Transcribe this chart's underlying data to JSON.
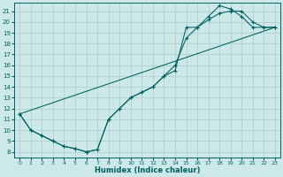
{
  "bg_color": "#cce8e8",
  "grid_color": "#b0d0d0",
  "line_color": "#006060",
  "xlabel": "Humidex (Indice chaleur)",
  "xlim": [
    -0.5,
    23.5
  ],
  "ylim": [
    7.5,
    21.8
  ],
  "xticks": [
    0,
    1,
    2,
    3,
    4,
    5,
    6,
    7,
    8,
    9,
    10,
    11,
    12,
    13,
    14,
    15,
    16,
    17,
    18,
    19,
    20,
    21,
    22,
    23
  ],
  "yticks": [
    8,
    9,
    10,
    11,
    12,
    13,
    14,
    15,
    16,
    17,
    18,
    19,
    20,
    21
  ],
  "line1_x": [
    0,
    1,
    2,
    3,
    4,
    5,
    6,
    7,
    8,
    9,
    10,
    11,
    12,
    13,
    14,
    15,
    16,
    17,
    18,
    19,
    20,
    21,
    22,
    23
  ],
  "line1_y": [
    11.5,
    10.0,
    9.5,
    9.0,
    8.5,
    8.3,
    8.0,
    8.2,
    11.0,
    12.0,
    13.0,
    13.5,
    14.0,
    15.0,
    15.5,
    19.5,
    19.5,
    20.5,
    21.5,
    21.2,
    20.5,
    19.5,
    19.5,
    19.5
  ],
  "line2_x": [
    0,
    1,
    2,
    3,
    4,
    5,
    6,
    7,
    8,
    9,
    10,
    11,
    12,
    13,
    14,
    15,
    16,
    17,
    18,
    19,
    20,
    21,
    22,
    23
  ],
  "line2_y": [
    11.5,
    10.0,
    9.5,
    9.0,
    8.5,
    8.3,
    8.0,
    8.2,
    11.0,
    12.0,
    13.0,
    13.5,
    14.0,
    15.0,
    16.0,
    18.5,
    19.5,
    20.2,
    20.8,
    21.0,
    21.0,
    20.0,
    19.5,
    19.5
  ],
  "line3_x": [
    0,
    23
  ],
  "line3_y": [
    11.5,
    19.5
  ]
}
